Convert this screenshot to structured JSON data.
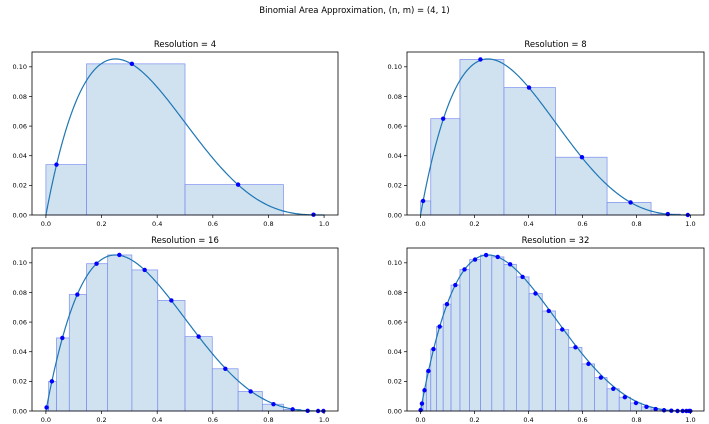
{
  "figure": {
    "title": "Binomial Area Approximation, (n, m) = (4, 1)"
  },
  "chart_data": [
    {
      "type": "bar+line+scatter",
      "title": "Resolution = 4",
      "xlim": [
        -0.05,
        1.05
      ],
      "ylim": [
        0,
        0.11
      ],
      "xticks": [
        0.0,
        0.2,
        0.4,
        0.6,
        0.8,
        1.0
      ],
      "xtick_labels": [
        "0.0",
        "0.2",
        "0.4",
        "0.6",
        "0.8",
        "1.0"
      ],
      "yticks": [
        0.0,
        0.02,
        0.04,
        0.06,
        0.08,
        0.1
      ],
      "ytick_labels": [
        "0.00",
        "0.02",
        "0.04",
        "0.06",
        "0.08",
        "0.10"
      ],
      "bars": [
        {
          "x0": 0.0,
          "x1": 0.146,
          "height": 0.034
        },
        {
          "x0": 0.146,
          "x1": 0.5,
          "height": 0.102
        },
        {
          "x0": 0.5,
          "x1": 0.854,
          "height": 0.0205
        },
        {
          "x0": 0.854,
          "x1": 1.0,
          "height": 0.0
        }
      ],
      "points_x": [
        0.038,
        0.309,
        0.691,
        0.962
      ],
      "points_y": [
        0.034,
        0.102,
        0.0205,
        0.0002
      ]
    },
    {
      "type": "bar+line+scatter",
      "title": "Resolution = 8",
      "xlim": [
        -0.05,
        1.05
      ],
      "ylim": [
        0,
        0.11
      ],
      "xticks": [
        0.0,
        0.2,
        0.4,
        0.6,
        0.8,
        1.0
      ],
      "xtick_labels": [
        "0.0",
        "0.2",
        "0.4",
        "0.6",
        "0.8",
        "1.0"
      ],
      "yticks": [
        0.0,
        0.02,
        0.04,
        0.06,
        0.08,
        0.1
      ],
      "ytick_labels": [
        "0.00",
        "0.02",
        "0.04",
        "0.06",
        "0.08",
        "0.10"
      ],
      "bars": [
        {
          "x0": 0.0,
          "x1": 0.038,
          "height": 0.0095
        },
        {
          "x0": 0.038,
          "x1": 0.146,
          "height": 0.065
        },
        {
          "x0": 0.146,
          "x1": 0.309,
          "height": 0.105
        },
        {
          "x0": 0.309,
          "x1": 0.5,
          "height": 0.086
        },
        {
          "x0": 0.5,
          "x1": 0.691,
          "height": 0.039
        },
        {
          "x0": 0.691,
          "x1": 0.854,
          "height": 0.0085
        },
        {
          "x0": 0.854,
          "x1": 0.962,
          "height": 0.0006
        },
        {
          "x0": 0.962,
          "x1": 1.0,
          "height": 0.0
        }
      ],
      "points_x": [
        0.0096,
        0.084,
        0.222,
        0.402,
        0.598,
        0.778,
        0.916,
        0.99
      ],
      "points_y": [
        0.0095,
        0.065,
        0.105,
        0.086,
        0.039,
        0.0085,
        0.0006,
        0.0
      ]
    },
    {
      "type": "bar+line+scatter",
      "title": "Resolution = 16",
      "xlim": [
        -0.05,
        1.05
      ],
      "ylim": [
        0,
        0.11
      ],
      "xticks": [
        0.0,
        0.2,
        0.4,
        0.6,
        0.8,
        1.0
      ],
      "xtick_labels": [
        "0.0",
        "0.2",
        "0.4",
        "0.6",
        "0.8",
        "1.0"
      ],
      "yticks": [
        0.0,
        0.02,
        0.04,
        0.06,
        0.08,
        0.1
      ],
      "ytick_labels": [
        "0.00",
        "0.02",
        "0.04",
        "0.06",
        "0.08",
        "0.10"
      ],
      "bars": [
        {
          "x0": 0.0,
          "x1": 0.0096,
          "height": 0.0024
        },
        {
          "x0": 0.0096,
          "x1": 0.038,
          "height": 0.02
        },
        {
          "x0": 0.038,
          "x1": 0.084,
          "height": 0.0493
        },
        {
          "x0": 0.084,
          "x1": 0.146,
          "height": 0.0786
        },
        {
          "x0": 0.146,
          "x1": 0.222,
          "height": 0.0994
        },
        {
          "x0": 0.222,
          "x1": 0.309,
          "height": 0.1053
        },
        {
          "x0": 0.309,
          "x1": 0.402,
          "height": 0.0952
        },
        {
          "x0": 0.402,
          "x1": 0.5,
          "height": 0.0746
        },
        {
          "x0": 0.5,
          "x1": 0.598,
          "height": 0.0502
        },
        {
          "x0": 0.598,
          "x1": 0.691,
          "height": 0.0285
        },
        {
          "x0": 0.691,
          "x1": 0.778,
          "height": 0.0132
        },
        {
          "x0": 0.778,
          "x1": 0.854,
          "height": 0.0046
        },
        {
          "x0": 0.854,
          "x1": 0.916,
          "height": 0.0011
        },
        {
          "x0": 0.916,
          "x1": 0.962,
          "height": 0.0001
        },
        {
          "x0": 0.962,
          "x1": 0.99,
          "height": 0.0
        },
        {
          "x0": 0.99,
          "x1": 1.0,
          "height": 0.0
        }
      ],
      "points_x": [
        0.0024,
        0.0215,
        0.059,
        0.113,
        0.182,
        0.264,
        0.355,
        0.451,
        0.549,
        0.645,
        0.736,
        0.818,
        0.887,
        0.941,
        0.9785,
        0.9976
      ],
      "points_y": [
        0.0024,
        0.02,
        0.0493,
        0.0786,
        0.0994,
        0.1053,
        0.0952,
        0.0746,
        0.0502,
        0.0285,
        0.0132,
        0.0046,
        0.0011,
        0.0001,
        0.0,
        0.0
      ]
    },
    {
      "type": "bar+line+scatter",
      "title": "Resolution = 32",
      "xlim": [
        -0.05,
        1.05
      ],
      "ylim": [
        0,
        0.11
      ],
      "xticks": [
        0.0,
        0.2,
        0.4,
        0.6,
        0.8,
        1.0
      ],
      "xtick_labels": [
        "0.0",
        "0.2",
        "0.4",
        "0.6",
        "0.8",
        "1.0"
      ],
      "yticks": [
        0.0,
        0.02,
        0.04,
        0.06,
        0.08,
        0.1
      ],
      "ytick_labels": [
        "0.00",
        "0.02",
        "0.04",
        "0.06",
        "0.08",
        "0.10"
      ],
      "bars": [
        {
          "x0": 0.0,
          "x1": 0.0024,
          "height": 0.0006
        },
        {
          "x0": 0.0024,
          "x1": 0.0096,
          "height": 0.005
        },
        {
          "x0": 0.0096,
          "x1": 0.0215,
          "height": 0.014
        },
        {
          "x0": 0.0215,
          "x1": 0.038,
          "height": 0.027
        },
        {
          "x0": 0.038,
          "x1": 0.059,
          "height": 0.0418
        },
        {
          "x0": 0.059,
          "x1": 0.084,
          "height": 0.057
        },
        {
          "x0": 0.084,
          "x1": 0.113,
          "height": 0.0721
        },
        {
          "x0": 0.113,
          "x1": 0.146,
          "height": 0.085
        },
        {
          "x0": 0.146,
          "x1": 0.182,
          "height": 0.0955
        },
        {
          "x0": 0.182,
          "x1": 0.222,
          "height": 0.1022
        },
        {
          "x0": 0.222,
          "x1": 0.264,
          "height": 0.1052
        },
        {
          "x0": 0.264,
          "x1": 0.309,
          "height": 0.104
        },
        {
          "x0": 0.309,
          "x1": 0.355,
          "height": 0.099
        },
        {
          "x0": 0.355,
          "x1": 0.402,
          "height": 0.0905
        },
        {
          "x0": 0.402,
          "x1": 0.451,
          "height": 0.0793
        },
        {
          "x0": 0.451,
          "x1": 0.5,
          "height": 0.0675
        },
        {
          "x0": 0.5,
          "x1": 0.549,
          "height": 0.055
        },
        {
          "x0": 0.549,
          "x1": 0.598,
          "height": 0.043
        },
        {
          "x0": 0.598,
          "x1": 0.645,
          "height": 0.0318
        },
        {
          "x0": 0.645,
          "x1": 0.691,
          "height": 0.0226
        },
        {
          "x0": 0.691,
          "x1": 0.736,
          "height": 0.015
        },
        {
          "x0": 0.736,
          "x1": 0.778,
          "height": 0.0093
        },
        {
          "x0": 0.778,
          "x1": 0.818,
          "height": 0.0054
        },
        {
          "x0": 0.818,
          "x1": 0.854,
          "height": 0.0028
        },
        {
          "x0": 0.854,
          "x1": 0.887,
          "height": 0.0013
        },
        {
          "x0": 0.887,
          "x1": 0.916,
          "height": 0.0005
        },
        {
          "x0": 0.916,
          "x1": 0.941,
          "height": 0.0002
        },
        {
          "x0": 0.941,
          "x1": 0.962,
          "height": 0.0
        },
        {
          "x0": 0.962,
          "x1": 0.9785,
          "height": 0.0
        },
        {
          "x0": 0.9785,
          "x1": 0.9904,
          "height": 0.0
        },
        {
          "x0": 0.9904,
          "x1": 0.9976,
          "height": 0.0
        },
        {
          "x0": 0.9976,
          "x1": 1.0,
          "height": 0.0
        }
      ],
      "points_x": [
        0.0006,
        0.0054,
        0.015,
        0.0293,
        0.048,
        0.071,
        0.098,
        0.129,
        0.163,
        0.202,
        0.243,
        0.286,
        0.332,
        0.378,
        0.426,
        0.475,
        0.525,
        0.574,
        0.622,
        0.668,
        0.714,
        0.757,
        0.798,
        0.837,
        0.871,
        0.902,
        0.929,
        0.952,
        0.971,
        0.985,
        0.995,
        0.9994
      ],
      "points_y": [
        0.0006,
        0.005,
        0.014,
        0.027,
        0.0418,
        0.057,
        0.0721,
        0.085,
        0.0955,
        0.1022,
        0.1052,
        0.104,
        0.099,
        0.0905,
        0.0793,
        0.0675,
        0.055,
        0.043,
        0.0318,
        0.0226,
        0.015,
        0.0093,
        0.0054,
        0.0028,
        0.0013,
        0.0005,
        0.0002,
        0.0,
        0.0,
        0.0,
        0.0,
        0.0
      ]
    }
  ]
}
